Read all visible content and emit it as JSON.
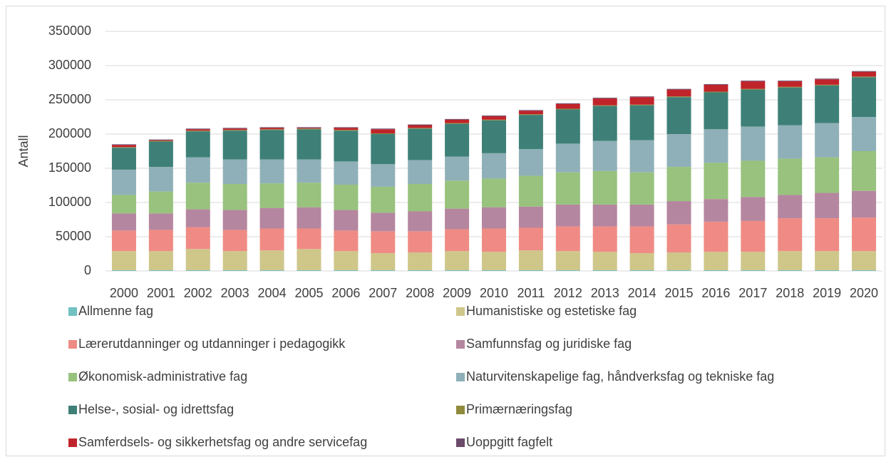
{
  "chart_data": {
    "type": "stacked_bar",
    "ylabel": "Antall",
    "categories": [
      "2000",
      "2001",
      "2002",
      "2003",
      "2004",
      "2005",
      "2006",
      "2007",
      "2008",
      "2009",
      "2010",
      "2011",
      "2012",
      "2013",
      "2014",
      "2015",
      "2016",
      "2017",
      "2018",
      "2019",
      "2020"
    ],
    "ylim": [
      0,
      350000
    ],
    "yticks": [
      0,
      50000,
      100000,
      150000,
      200000,
      250000,
      300000,
      350000
    ],
    "grid": true,
    "series": [
      {
        "name": "Allmenne fag",
        "color": "#70c1c0",
        "values": [
          1000,
          1000,
          1000,
          1000,
          1000,
          1000,
          1000,
          1000,
          1000,
          1000,
          1000,
          1000,
          1000,
          1000,
          1000,
          1000,
          1000,
          1000,
          1000,
          1000,
          1000
        ]
      },
      {
        "name": "Humanistiske og estetiske fag",
        "color": "#cfc68a",
        "values": [
          28000,
          28000,
          31000,
          28000,
          29000,
          31000,
          28000,
          25000,
          26000,
          28000,
          27000,
          29000,
          28000,
          27000,
          25000,
          26000,
          27000,
          27000,
          28000,
          28000,
          28000
        ]
      },
      {
        "name": "Lærerutdanninger og utdanninger i pedagogikk",
        "color": "#ef8b84",
        "values": [
          30000,
          31000,
          32000,
          31000,
          32000,
          30000,
          30000,
          32000,
          31000,
          32000,
          34000,
          33000,
          36000,
          37000,
          39000,
          41000,
          44000,
          45000,
          48000,
          48000,
          49000
        ]
      },
      {
        "name": "Samfunnsfag og juridiske fag",
        "color": "#b5869f",
        "values": [
          25000,
          24000,
          26000,
          29000,
          30000,
          31000,
          30000,
          27000,
          29000,
          30000,
          31000,
          31000,
          32000,
          32000,
          32000,
          34000,
          33000,
          35000,
          34000,
          37000,
          39000
        ]
      },
      {
        "name": "Økonomisk-administrative fag",
        "color": "#98c27d",
        "values": [
          27000,
          32000,
          39000,
          38000,
          36000,
          36000,
          37000,
          38000,
          40000,
          41000,
          42000,
          45000,
          47000,
          49000,
          47000,
          50000,
          53000,
          53000,
          53000,
          52000,
          58000
        ]
      },
      {
        "name": "Naturvitenskapelige fag, håndverksfag og tekniske fag",
        "color": "#8fb0b8",
        "values": [
          37000,
          36000,
          37000,
          36000,
          35000,
          34000,
          34000,
          33000,
          35000,
          35000,
          37000,
          39000,
          42000,
          44000,
          47000,
          48000,
          49000,
          50000,
          49000,
          50000,
          50000
        ]
      },
      {
        "name": "Helse-, sosial- og idrettsfag",
        "color": "#3e8077",
        "values": [
          32000,
          37000,
          38000,
          42000,
          43000,
          44000,
          45000,
          44000,
          46000,
          48000,
          48000,
          50000,
          50000,
          51000,
          51000,
          54000,
          54000,
          54000,
          55000,
          55000,
          58000
        ]
      },
      {
        "name": "Primærnæringsfag",
        "color": "#8f8a3c",
        "values": [
          1000,
          1000,
          1000,
          1000,
          1000,
          1000,
          1000,
          1000,
          1000,
          1000,
          1000,
          1000,
          1000,
          1000,
          1000,
          1000,
          1000,
          1000,
          1000,
          1000,
          1000
        ]
      },
      {
        "name": "Samferdsels- og sikkerhetsfag og andre servicefag",
        "color": "#c0242b",
        "values": [
          3000,
          1000,
          2000,
          2000,
          2000,
          1000,
          3000,
          6000,
          4000,
          5000,
          5000,
          5000,
          7000,
          10000,
          11000,
          10000,
          10000,
          11000,
          8000,
          8000,
          7000
        ]
      },
      {
        "name": "Uoppgitt fagfelt",
        "color": "#6b4a6a",
        "values": [
          1000,
          1000,
          1000,
          1000,
          1000,
          1000,
          1000,
          1000,
          1000,
          1000,
          1000,
          1000,
          1000,
          1000,
          1000,
          1000,
          1000,
          1000,
          1000,
          1000,
          1000
        ]
      }
    ]
  }
}
